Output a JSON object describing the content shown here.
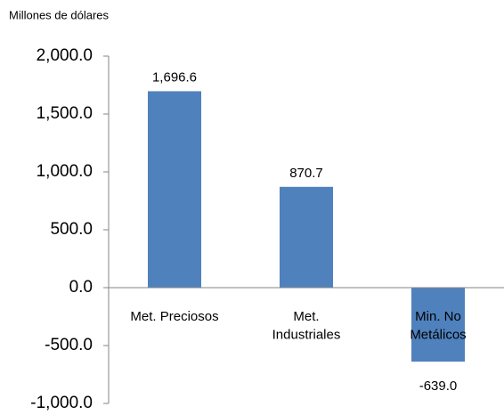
{
  "chart_data": {
    "type": "bar",
    "y_axis_label": "Millones de dólares",
    "categories": [
      "Met. Preciosos",
      "Met.\nIndustriales",
      "Min. No\nMetálicos"
    ],
    "values": [
      1696.6,
      870.7,
      -639.0
    ],
    "value_labels": [
      "1,696.6",
      "870.7",
      "-639.0"
    ],
    "color": "#4f81bd",
    "ylim": [
      -1000,
      2000
    ],
    "yticks": [
      {
        "value": -1000,
        "label": "-1,000.0"
      },
      {
        "value": -500,
        "label": "-500.0"
      },
      {
        "value": 0,
        "label": "0.0"
      },
      {
        "value": 500,
        "label": "500.0"
      },
      {
        "value": 1000,
        "label": "1,000.0"
      },
      {
        "value": 1500,
        "label": "1,500.0"
      },
      {
        "value": 2000,
        "label": "2,000.0"
      }
    ],
    "grid": false
  }
}
